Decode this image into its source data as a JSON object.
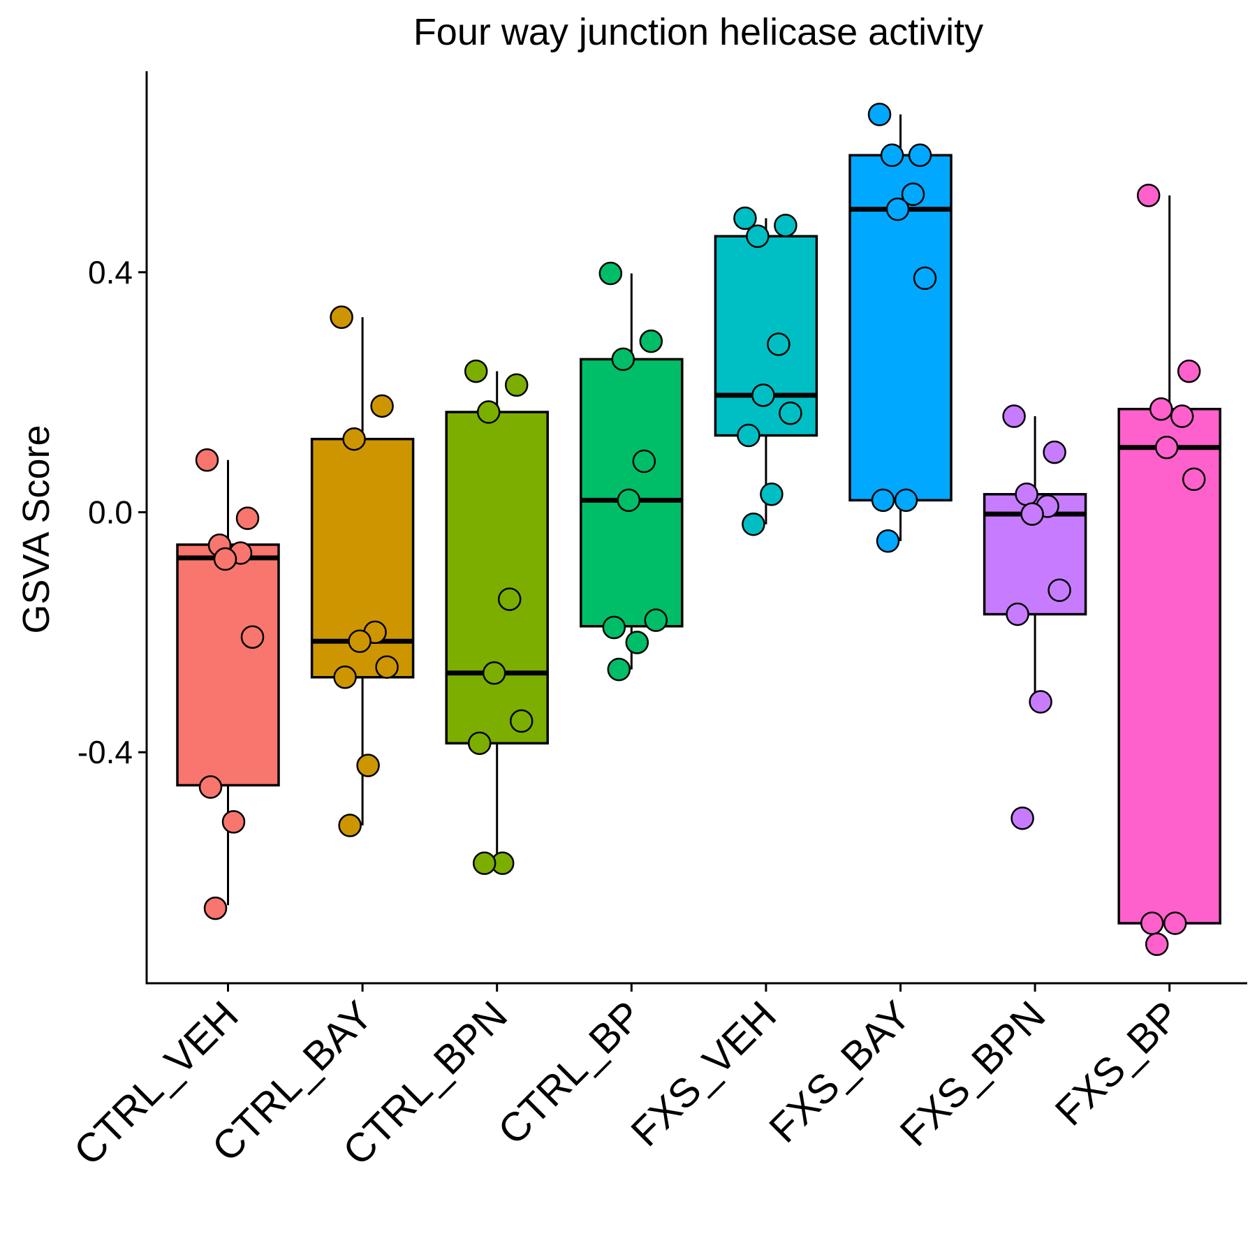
{
  "chart_data": {
    "type": "box",
    "title": "Four way junction helicase activity",
    "xlabel": "",
    "ylabel": "GSVA Score",
    "ylim": [
      -0.785,
      0.735
    ],
    "yticks": [
      0.4,
      0.0,
      -0.4
    ],
    "ytick_labels": [
      "0.4",
      "0.0",
      "-0.4"
    ],
    "grid": false,
    "legend": "none",
    "categories": [
      "CTRL_VEH",
      "CTRL_BAY",
      "CTRL_BPN",
      "CTRL_BP",
      "FXS_VEH",
      "FXS_BAY",
      "FXS_BPN",
      "FXS_BP"
    ],
    "colors": [
      "#F8766D",
      "#CD9600",
      "#7CAE00",
      "#00BE67",
      "#00BFC4",
      "#00A9FF",
      "#C77CFF",
      "#FF61CC"
    ],
    "boxes": [
      {
        "q1": -0.455,
        "median": -0.076,
        "q3": -0.054,
        "whisker_low": -0.655,
        "whisker_high": 0.087
      },
      {
        "q1": -0.275,
        "median": -0.215,
        "q3": 0.122,
        "whisker_low": -0.522,
        "whisker_high": 0.325
      },
      {
        "q1": -0.385,
        "median": -0.268,
        "q3": 0.167,
        "whisker_low": -0.585,
        "whisker_high": 0.235
      },
      {
        "q1": -0.19,
        "median": 0.02,
        "q3": 0.255,
        "whisker_low": -0.262,
        "whisker_high": 0.398
      },
      {
        "q1": 0.128,
        "median": 0.195,
        "q3": 0.46,
        "whisker_low": -0.02,
        "whisker_high": 0.49
      },
      {
        "q1": 0.02,
        "median": 0.505,
        "q3": 0.595,
        "whisker_low": -0.048,
        "whisker_high": 0.663
      },
      {
        "q1": -0.17,
        "median": -0.003,
        "q3": 0.03,
        "whisker_low": -0.316,
        "whisker_high": 0.16
      },
      {
        "q1": -0.685,
        "median": 0.108,
        "q3": 0.172,
        "whisker_low": -0.685,
        "whisker_high": 0.528
      }
    ],
    "points": [
      {
        "category": "CTRL_VEH",
        "values": [
          0.087,
          -0.01,
          -0.055,
          -0.068,
          -0.078,
          -0.208,
          -0.458,
          -0.516,
          -0.66
        ]
      },
      {
        "category": "CTRL_BAY",
        "values": [
          0.325,
          0.177,
          0.122,
          -0.2,
          -0.215,
          -0.258,
          -0.275,
          -0.422,
          -0.522
        ]
      },
      {
        "category": "CTRL_BPN",
        "values": [
          0.235,
          0.212,
          0.167,
          -0.145,
          -0.268,
          -0.348,
          -0.385,
          -0.585,
          -0.585
        ]
      },
      {
        "category": "CTRL_BP",
        "values": [
          0.398,
          0.285,
          0.255,
          0.085,
          0.02,
          -0.18,
          -0.192,
          -0.217,
          -0.262
        ]
      },
      {
        "category": "FXS_VEH",
        "values": [
          0.49,
          0.478,
          0.46,
          0.28,
          0.195,
          0.165,
          0.128,
          0.03,
          -0.02
        ]
      },
      {
        "category": "FXS_BAY",
        "values": [
          0.663,
          0.595,
          0.595,
          0.53,
          0.505,
          0.39,
          0.02,
          0.02,
          -0.048
        ]
      },
      {
        "category": "FXS_BPN",
        "values": [
          0.16,
          0.1,
          0.03,
          0.01,
          -0.003,
          -0.13,
          -0.17,
          -0.316,
          -0.51
        ]
      },
      {
        "category": "FXS_BP",
        "values": [
          0.528,
          0.235,
          0.172,
          0.16,
          0.108,
          0.055,
          -0.685,
          -0.685,
          -0.72
        ]
      }
    ]
  }
}
